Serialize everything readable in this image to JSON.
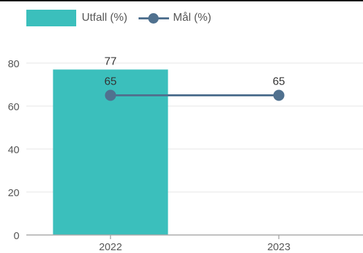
{
  "chart_data": {
    "type": "bar",
    "categories": [
      "2022",
      "2023"
    ],
    "series": [
      {
        "name": "Utfall (%)",
        "kind": "bar",
        "color": "#3bbfbc",
        "values": [
          77,
          null
        ],
        "data_labels": [
          "77",
          ""
        ]
      },
      {
        "name": "Mål (%)",
        "kind": "line",
        "color": "#50718f",
        "values": [
          65,
          65
        ],
        "data_labels": [
          "65",
          "65"
        ]
      }
    ],
    "ylim": [
      0,
      90
    ],
    "yticks": [
      0,
      20,
      40,
      60,
      80
    ],
    "ytick_labels": [
      "0",
      "20",
      "40",
      "60",
      "80"
    ],
    "grid": true,
    "legend_position": "top-left",
    "title": "",
    "xlabel": "",
    "ylabel": ""
  }
}
